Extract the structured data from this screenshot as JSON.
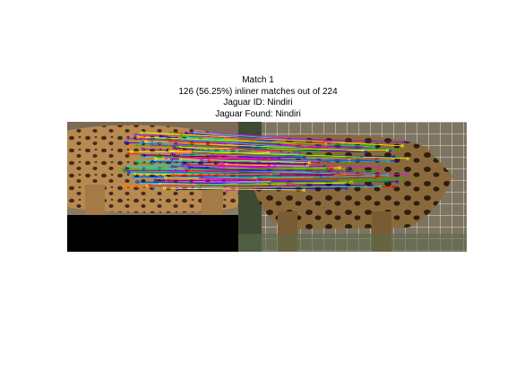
{
  "figure": {
    "title_lines": [
      "Match 1",
      "126 (56.25%) inliner matches out of 224",
      "Jaguar ID: Nindiri",
      "Jaguar Found: Nindiri"
    ],
    "inlier_count": 126,
    "total_matches": 224,
    "inlier_percent": 56.25,
    "match_line_colors": [
      "#ff0000",
      "#00c000",
      "#0000ff",
      "#ff00ff",
      "#00e0e0",
      "#ffff00",
      "#8000ff",
      "#ff8000"
    ]
  }
}
